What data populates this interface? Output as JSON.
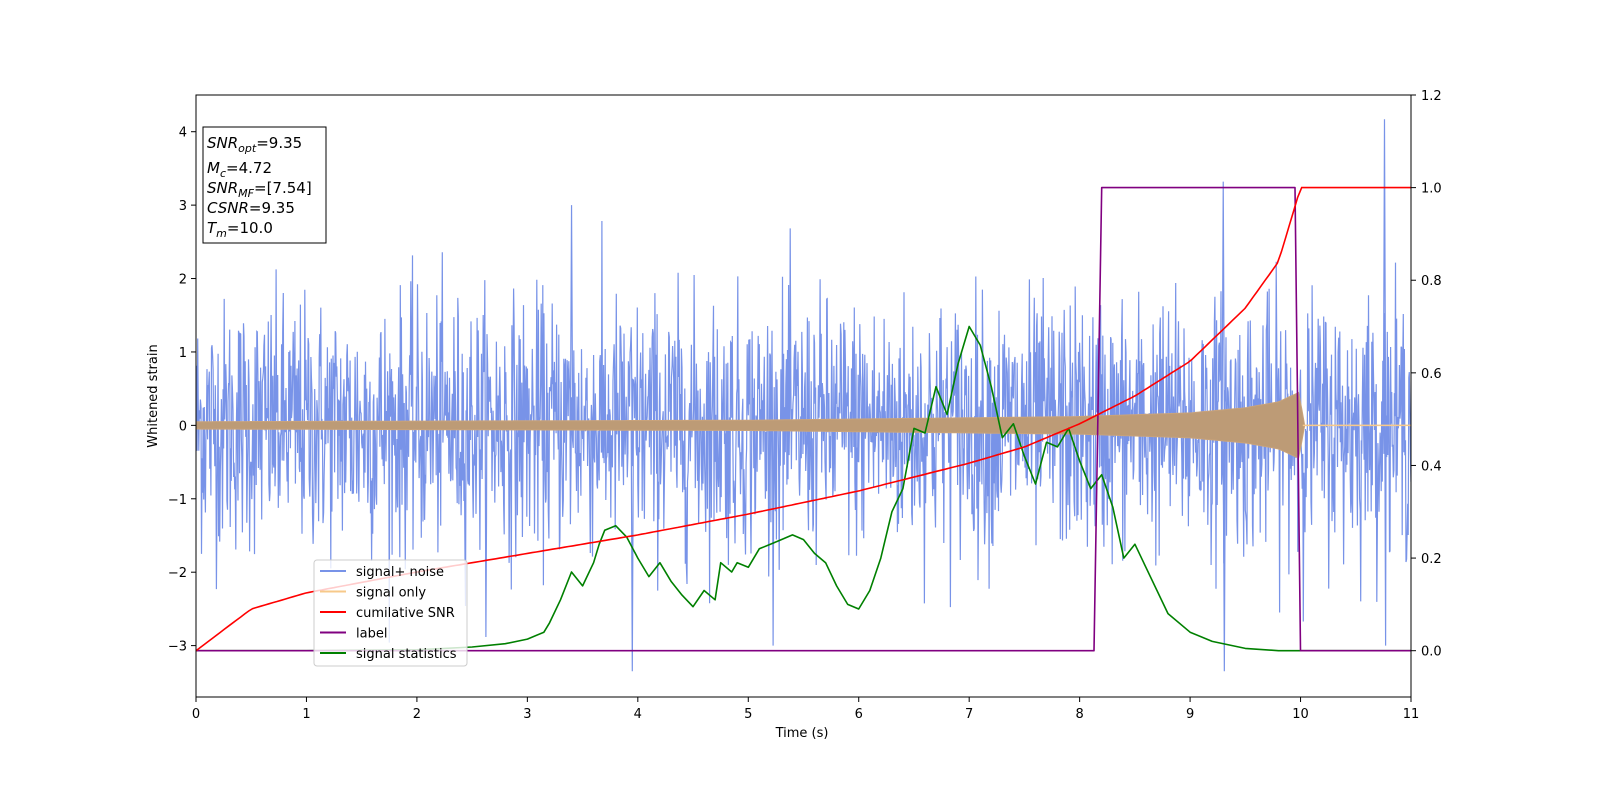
{
  "chart_data": {
    "type": "line",
    "xlabel": "Time (s)",
    "ylabel": "Whitened strain",
    "xlim": [
      0,
      11
    ],
    "ylim": [
      -3.7,
      4.5
    ],
    "y2lim": [
      -0.1,
      1.2
    ],
    "xticks": [
      "0",
      "1",
      "2",
      "3",
      "4",
      "5",
      "6",
      "7",
      "8",
      "9",
      "10",
      "11"
    ],
    "yticks": [
      "4",
      "3",
      "2",
      "1",
      "0",
      "−1",
      "−2",
      "−3"
    ],
    "y2ticks": [
      "1.2",
      "1.0",
      "0.8",
      "0.6",
      "0.4",
      "0.2",
      "0.0"
    ],
    "grid": false,
    "legend_position": "lower-left",
    "annotation": [
      {
        "sym": "SNR",
        "sub": "opt",
        "value": "=9.35"
      },
      {
        "sym": "M",
        "sub": "c",
        "value": "=4.72"
      },
      {
        "sym": "SNR",
        "sub": "MF",
        "value": "=[7.54]"
      },
      {
        "sym": "CSNR",
        "sub": "",
        "value": "=9.35"
      },
      {
        "sym": "T",
        "sub": "m",
        "value": "=10.0"
      }
    ],
    "series": [
      {
        "name": "signal+ noise",
        "color": "#7893e8",
        "axis": "left",
        "description_values": {
          "mean": 0.0,
          "typical_range": [
            -2.0,
            2.0
          ],
          "max": 4.17,
          "min": -3.35
        }
      },
      {
        "name": "signal only",
        "color": "#f7c98a",
        "axis": "left",
        "envelope": {
          "t": [
            0,
            5,
            8,
            9,
            9.5,
            9.8,
            10.0,
            10.02,
            11
          ],
          "amp": [
            0.05,
            0.07,
            0.12,
            0.17,
            0.24,
            0.32,
            0.46,
            0.0,
            0.0
          ]
        }
      },
      {
        "name": "cumilative SNR",
        "color": "#ff0000",
        "axis": "right",
        "x": [
          0,
          0.5,
          1,
          2,
          3,
          4,
          5,
          6,
          7,
          7.5,
          8,
          8.5,
          9,
          9.5,
          9.8,
          10.0,
          11
        ],
        "y": [
          0.0,
          0.09,
          0.125,
          0.17,
          0.21,
          0.25,
          0.295,
          0.345,
          0.405,
          0.44,
          0.49,
          0.55,
          0.625,
          0.74,
          0.84,
          1.0,
          1.0
        ]
      },
      {
        "name": "label",
        "color": "#800080",
        "axis": "right",
        "x": [
          0,
          8.13,
          8.2,
          9.95,
          10.0,
          11
        ],
        "y": [
          0.0,
          0.0,
          1.0,
          1.0,
          0.0,
          0.0
        ]
      },
      {
        "name": "signal statistics",
        "color": "#008000",
        "axis": "right",
        "x": [
          0,
          1,
          2,
          2.5,
          2.8,
          3.0,
          3.15,
          3.2,
          3.3,
          3.4,
          3.5,
          3.6,
          3.65,
          3.7,
          3.8,
          3.9,
          4.0,
          4.1,
          4.2,
          4.3,
          4.4,
          4.5,
          4.6,
          4.7,
          4.75,
          4.85,
          4.9,
          5.0,
          5.1,
          5.2,
          5.3,
          5.4,
          5.5,
          5.6,
          5.7,
          5.8,
          5.9,
          6.0,
          6.1,
          6.2,
          6.3,
          6.4,
          6.5,
          6.6,
          6.7,
          6.8,
          6.9,
          7.0,
          7.1,
          7.2,
          7.3,
          7.4,
          7.5,
          7.6,
          7.7,
          7.8,
          7.9,
          8.0,
          8.1,
          8.2,
          8.3,
          8.4,
          8.5,
          8.6,
          8.8,
          9.0,
          9.2,
          9.5,
          9.8,
          10.0,
          11
        ],
        "y": [
          0.0,
          0.0,
          0.002,
          0.008,
          0.015,
          0.025,
          0.04,
          0.06,
          0.11,
          0.17,
          0.14,
          0.19,
          0.23,
          0.26,
          0.27,
          0.245,
          0.2,
          0.16,
          0.19,
          0.15,
          0.12,
          0.095,
          0.13,
          0.11,
          0.19,
          0.17,
          0.19,
          0.18,
          0.22,
          0.23,
          0.24,
          0.25,
          0.24,
          0.21,
          0.19,
          0.14,
          0.1,
          0.09,
          0.13,
          0.2,
          0.3,
          0.35,
          0.48,
          0.47,
          0.57,
          0.51,
          0.62,
          0.7,
          0.66,
          0.57,
          0.46,
          0.49,
          0.42,
          0.36,
          0.45,
          0.44,
          0.48,
          0.41,
          0.35,
          0.38,
          0.31,
          0.2,
          0.23,
          0.18,
          0.08,
          0.04,
          0.02,
          0.005,
          0.0,
          0.0,
          0.0
        ]
      }
    ]
  }
}
